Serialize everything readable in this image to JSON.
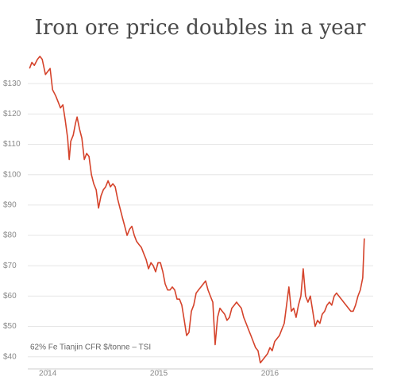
{
  "chart_data": {
    "type": "line",
    "title": "Iron ore price doubles in a year",
    "annotation": "62% Fe Tianjin CFR $/tonne – TSI",
    "color": "#d5432b",
    "grid": true,
    "xlim": [
      2013.82,
      2016.93
    ],
    "xticks": [
      2014,
      2015,
      2016
    ],
    "ylim": [
      36,
      140
    ],
    "yticks": [
      {
        "value": 40,
        "label": "$40"
      },
      {
        "value": 50,
        "label": "$50"
      },
      {
        "value": 60,
        "label": "$60"
      },
      {
        "value": 70,
        "label": "$70"
      },
      {
        "value": 80,
        "label": "$80"
      },
      {
        "value": 90,
        "label": "$90"
      },
      {
        "value": 100,
        "label": "$100"
      },
      {
        "value": 110,
        "label": "$110"
      },
      {
        "value": 120,
        "label": "$120"
      },
      {
        "value": 130,
        "label": "$130"
      }
    ],
    "x": [
      2013.836,
      2013.857,
      2013.879,
      2013.907,
      2013.929,
      2013.95,
      2013.979,
      2014,
      2014.021,
      2014.043,
      2014.071,
      2014.093,
      2014.114,
      2014.136,
      2014.157,
      2014.179,
      2014.193,
      2014.207,
      2014.229,
      2014.25,
      2014.264,
      2014.286,
      2014.307,
      2014.329,
      2014.35,
      2014.371,
      2014.393,
      2014.414,
      2014.436,
      2014.457,
      2014.479,
      2014.5,
      2014.521,
      2014.543,
      2014.564,
      2014.586,
      2014.607,
      2014.629,
      2014.65,
      2014.671,
      2014.693,
      2014.714,
      2014.736,
      2014.757,
      2014.779,
      2014.8,
      2014.821,
      2014.843,
      2014.864,
      2014.886,
      2014.907,
      2014.929,
      2014.95,
      2014.971,
      2014.993,
      2015.014,
      2015.036,
      2015.057,
      2015.079,
      2015.1,
      2015.121,
      2015.143,
      2015.164,
      2015.186,
      2015.207,
      2015.229,
      2015.25,
      2015.271,
      2015.293,
      2015.314,
      2015.336,
      2015.357,
      2015.379,
      2015.4,
      2015.421,
      2015.443,
      2015.464,
      2015.486,
      2015.507,
      2015.529,
      2015.55,
      2015.571,
      2015.593,
      2015.614,
      2015.636,
      2015.657,
      2015.679,
      2015.7,
      2015.721,
      2015.743,
      2015.764,
      2015.786,
      2015.807,
      2015.829,
      2015.85,
      2015.871,
      2015.893,
      2015.914,
      2015.936,
      2015.957,
      2015.979,
      2016,
      2016.021,
      2016.043,
      2016.064,
      2016.086,
      2016.107,
      2016.129,
      2016.15,
      2016.171,
      2016.193,
      2016.214,
      2016.236,
      2016.257,
      2016.279,
      2016.3,
      2016.321,
      2016.343,
      2016.364,
      2016.386,
      2016.407,
      2016.429,
      2016.45,
      2016.471,
      2016.493,
      2016.514,
      2016.536,
      2016.557,
      2016.579,
      2016.6,
      2016.621,
      2016.643,
      2016.664,
      2016.686,
      2016.707,
      2016.729,
      2016.75,
      2016.771,
      2016.793,
      2016.814,
      2016.836,
      2016.85
    ],
    "values": [
      135,
      137,
      136,
      138,
      139,
      138,
      133,
      134,
      135,
      128,
      126,
      124,
      122,
      123,
      118,
      112,
      105,
      111,
      113,
      117,
      119,
      115,
      112,
      105,
      107,
      106,
      100,
      97,
      95,
      89,
      93,
      95,
      96,
      98,
      96,
      97,
      96,
      92,
      89,
      86,
      83,
      80,
      82,
      83,
      80,
      78,
      77,
      76,
      74,
      72,
      69,
      71,
      70,
      68,
      71,
      71,
      68,
      64,
      62,
      62,
      63,
      62,
      59,
      59,
      57,
      52,
      47,
      48,
      55,
      57,
      61,
      62,
      63,
      64,
      65,
      62,
      60,
      58,
      44,
      53,
      56,
      55,
      54,
      52,
      53,
      56,
      57,
      58,
      57,
      56,
      53,
      51,
      49,
      47,
      45,
      43,
      42,
      38,
      39,
      40,
      41,
      43,
      42,
      45,
      46,
      47,
      49,
      51,
      57,
      63,
      55,
      56,
      53,
      57,
      60,
      69,
      60,
      58,
      60,
      55,
      50,
      52,
      51,
      54,
      55,
      57,
      58,
      57,
      60,
      61,
      60,
      59,
      58,
      57,
      56,
      55,
      55,
      57,
      60,
      62,
      66,
      79
    ]
  }
}
